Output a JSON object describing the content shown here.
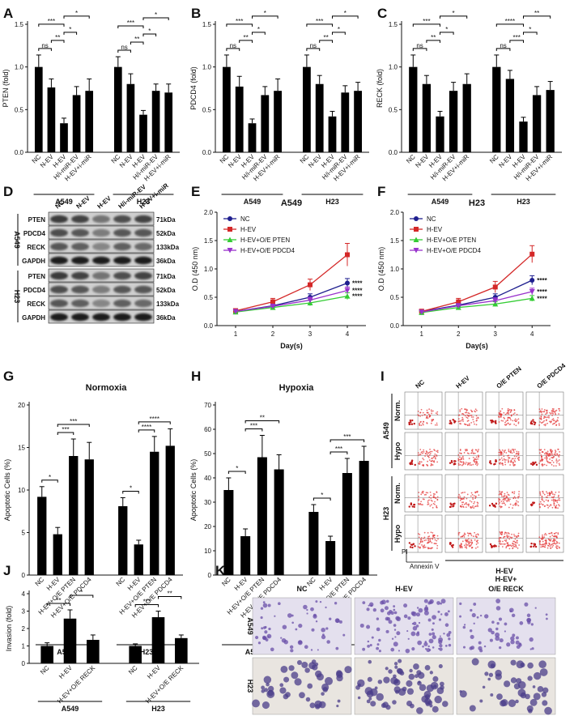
{
  "panels": {
    "A": {
      "type": "bar",
      "ylabel": "PTEN (fold)",
      "ylim": [
        0,
        1.5
      ],
      "yticks": [
        "0.0",
        "0.5",
        "1.0",
        "1.5"
      ],
      "categories": [
        "NC",
        "N-EV",
        "H-EV",
        "H/i-miR-EV",
        "H-EV+i-miR"
      ],
      "groups": [
        {
          "name": "A549",
          "values": [
            1.0,
            0.76,
            0.34,
            0.67,
            0.72
          ],
          "errors": [
            0.14,
            0.1,
            0.06,
            0.1,
            0.14
          ],
          "sig": [
            {
              "from": 0,
              "to": 2,
              "text": "***"
            },
            {
              "from": 0,
              "to": 1,
              "text": "ns"
            },
            {
              "from": 1,
              "to": 2,
              "text": "**"
            },
            {
              "from": 2,
              "to": 3,
              "text": "*"
            },
            {
              "from": 2,
              "to": 4,
              "text": "*"
            }
          ]
        },
        {
          "name": "H23",
          "values": [
            1.0,
            0.8,
            0.44,
            0.72,
            0.7
          ],
          "errors": [
            0.12,
            0.12,
            0.05,
            0.08,
            0.1
          ],
          "sig": [
            {
              "from": 0,
              "to": 2,
              "text": "***"
            },
            {
              "from": 0,
              "to": 1,
              "text": "ns"
            },
            {
              "from": 1,
              "to": 2,
              "text": "**"
            },
            {
              "from": 2,
              "to": 3,
              "text": "*"
            },
            {
              "from": 2,
              "to": 4,
              "text": "*"
            }
          ]
        }
      ]
    },
    "B": {
      "type": "bar",
      "ylabel": "PDCD4 (fold)",
      "ylim": [
        0,
        1.5
      ],
      "yticks": [
        "0.0",
        "0.5",
        "1.0",
        "1.5"
      ],
      "categories": [
        "NC",
        "N-EV",
        "H-EV",
        "H/i-miR-EV",
        "H-EV+i-miR"
      ],
      "groups": [
        {
          "name": "A549",
          "values": [
            1.0,
            0.77,
            0.34,
            0.67,
            0.72
          ],
          "errors": [
            0.14,
            0.12,
            0.05,
            0.1,
            0.14
          ],
          "sig": [
            {
              "from": 0,
              "to": 2,
              "text": "***"
            },
            {
              "from": 0,
              "to": 1,
              "text": "ns"
            },
            {
              "from": 1,
              "to": 2,
              "text": "**"
            },
            {
              "from": 2,
              "to": 3,
              "text": "*"
            },
            {
              "from": 2,
              "to": 4,
              "text": "*"
            }
          ]
        },
        {
          "name": "H23",
          "values": [
            1.0,
            0.8,
            0.42,
            0.7,
            0.72
          ],
          "errors": [
            0.14,
            0.1,
            0.06,
            0.08,
            0.1
          ],
          "sig": [
            {
              "from": 0,
              "to": 2,
              "text": "***"
            },
            {
              "from": 0,
              "to": 1,
              "text": "ns"
            },
            {
              "from": 1,
              "to": 2,
              "text": "**"
            },
            {
              "from": 2,
              "to": 3,
              "text": "*"
            },
            {
              "from": 2,
              "to": 4,
              "text": "*"
            }
          ]
        }
      ]
    },
    "C": {
      "type": "bar",
      "ylabel": "RECK (fold)",
      "ylim": [
        0,
        1.5
      ],
      "yticks": [
        "0.0",
        "0.5",
        "1.0",
        "1.5"
      ],
      "categories": [
        "NC",
        "N-EV",
        "H-EV",
        "H/i-miR-EV",
        "H-EV+i-miR"
      ],
      "groups": [
        {
          "name": "A549",
          "values": [
            1.0,
            0.8,
            0.42,
            0.72,
            0.8
          ],
          "errors": [
            0.14,
            0.1,
            0.06,
            0.1,
            0.12
          ],
          "sig": [
            {
              "from": 0,
              "to": 2,
              "text": "***"
            },
            {
              "from": 0,
              "to": 1,
              "text": "ns"
            },
            {
              "from": 1,
              "to": 2,
              "text": "**"
            },
            {
              "from": 2,
              "to": 3,
              "text": "*"
            },
            {
              "from": 2,
              "to": 4,
              "text": "*"
            }
          ]
        },
        {
          "name": "H23",
          "values": [
            1.0,
            0.86,
            0.36,
            0.67,
            0.73
          ],
          "errors": [
            0.14,
            0.1,
            0.05,
            0.1,
            0.1
          ],
          "sig": [
            {
              "from": 0,
              "to": 2,
              "text": "****"
            },
            {
              "from": 0,
              "to": 1,
              "text": "ns"
            },
            {
              "from": 1,
              "to": 2,
              "text": "***"
            },
            {
              "from": 2,
              "to": 3,
              "text": "*"
            },
            {
              "from": 2,
              "to": 4,
              "text": "**"
            }
          ]
        }
      ]
    },
    "D": {
      "columns": [
        "NC",
        "N-EV",
        "H-EV",
        "H/i-miR-EV",
        "H-EV+i-miR"
      ],
      "blocks": [
        {
          "cell": "A549",
          "rows": [
            {
              "protein": "PTEN",
              "size": "71kDa"
            },
            {
              "protein": "PDCD4",
              "size": "52kDa"
            },
            {
              "protein": "RECK",
              "size": "133kDa"
            },
            {
              "protein": "GAPDH",
              "size": "36kDa"
            }
          ]
        },
        {
          "cell": "H23",
          "rows": [
            {
              "protein": "PTEN",
              "size": "71kDa"
            },
            {
              "protein": "PDCD4",
              "size": "52kDa"
            },
            {
              "protein": "RECK",
              "size": "133kDa"
            },
            {
              "protein": "GAPDH",
              "size": "36kDa"
            }
          ]
        }
      ]
    },
    "E": {
      "type": "line",
      "title": "A549",
      "xlabel": "Day(s)",
      "ylabel": "O.D (450 nm)",
      "x": [
        1,
        2,
        3,
        4
      ],
      "xlim": [
        0.5,
        4.5
      ],
      "ylim": [
        0,
        2.0
      ],
      "yticks": [
        "0.0",
        "0.5",
        "1.0",
        "1.5",
        "2.0"
      ],
      "series": [
        {
          "name": "NC",
          "color": "#1f1f8f",
          "values": [
            0.25,
            0.35,
            0.5,
            0.75
          ],
          "errors": [
            0.03,
            0.04,
            0.06,
            0.08
          ]
        },
        {
          "name": "H-EV",
          "color": "#d42828",
          "values": [
            0.26,
            0.42,
            0.72,
            1.25
          ],
          "errors": [
            0.04,
            0.06,
            0.1,
            0.2
          ]
        },
        {
          "name": "H-EV+O/E PTEN",
          "color": "#33cc33",
          "values": [
            0.24,
            0.32,
            0.4,
            0.52
          ],
          "errors": [
            0.03,
            0.03,
            0.05,
            0.06
          ]
        },
        {
          "name": "H-EV+O/E PDCD4",
          "color": "#9933cc",
          "values": [
            0.25,
            0.34,
            0.45,
            0.62
          ],
          "errors": [
            0.03,
            0.04,
            0.05,
            0.06
          ]
        }
      ],
      "end_sig": [
        "****",
        "****",
        "****"
      ]
    },
    "F": {
      "type": "line",
      "title": "H23",
      "xlabel": "Day(s)",
      "ylabel": "O.D (450 nm)",
      "x": [
        1,
        2,
        3,
        4
      ],
      "xlim": [
        0.5,
        4.5
      ],
      "ylim": [
        0,
        2.0
      ],
      "yticks": [
        "0.0",
        "0.5",
        "1.0",
        "1.5",
        "2.0"
      ],
      "series": [
        {
          "name": "NC",
          "color": "#1f1f8f",
          "values": [
            0.25,
            0.36,
            0.5,
            0.8
          ],
          "errors": [
            0.03,
            0.04,
            0.06,
            0.08
          ]
        },
        {
          "name": "H-EV",
          "color": "#d42828",
          "values": [
            0.25,
            0.42,
            0.68,
            1.26
          ],
          "errors": [
            0.04,
            0.06,
            0.1,
            0.15
          ]
        },
        {
          "name": "H-EV+O/E PTEN",
          "color": "#33cc33",
          "values": [
            0.23,
            0.32,
            0.38,
            0.48
          ],
          "errors": [
            0.03,
            0.03,
            0.04,
            0.05
          ]
        },
        {
          "name": "H-EV+O/E PDCD4",
          "color": "#9933cc",
          "values": [
            0.24,
            0.35,
            0.44,
            0.6
          ],
          "errors": [
            0.03,
            0.04,
            0.05,
            0.06
          ]
        }
      ],
      "end_sig": [
        "****",
        "****",
        "****"
      ]
    },
    "G": {
      "type": "bar",
      "title": "Normoxia",
      "ylabel": "Apoptotic Cells (%)",
      "ylim": [
        0,
        20
      ],
      "yticks": [
        "0",
        "5",
        "10",
        "15",
        "20"
      ],
      "categories": [
        "NC",
        "H-EV",
        "H-EV+O/E PTEN",
        "H-EV+O/E PDCD4"
      ],
      "groups": [
        {
          "name": "A549",
          "values": [
            9.2,
            4.8,
            14.0,
            13.6
          ],
          "errors": [
            1.2,
            0.8,
            2.0,
            2.0
          ],
          "sig": [
            {
              "from": 0,
              "to": 1,
              "text": "*"
            },
            {
              "from": 1,
              "to": 2,
              "text": "***"
            },
            {
              "from": 1,
              "to": 3,
              "text": "***"
            }
          ]
        },
        {
          "name": "H23",
          "values": [
            8.1,
            3.6,
            14.5,
            15.2
          ],
          "errors": [
            1.0,
            0.5,
            1.8,
            2.0
          ],
          "sig": [
            {
              "from": 0,
              "to": 1,
              "text": "*"
            },
            {
              "from": 1,
              "to": 2,
              "text": "****"
            },
            {
              "from": 1,
              "to": 3,
              "text": "****"
            }
          ]
        }
      ]
    },
    "H": {
      "type": "bar",
      "title": "Hypoxia",
      "ylabel": "Apoptotic Cells (%)",
      "ylim": [
        0,
        70
      ],
      "yticks": [
        "0",
        "10",
        "20",
        "30",
        "40",
        "50",
        "60",
        "70"
      ],
      "categories": [
        "NC",
        "H-EV",
        "H-EV+O/E PTEN",
        "H-EV+O/E PDCD4"
      ],
      "groups": [
        {
          "name": "A549",
          "values": [
            35,
            16,
            48.5,
            43.5
          ],
          "errors": [
            5,
            3,
            9,
            6
          ],
          "sig": [
            {
              "from": 0,
              "to": 1,
              "text": "*"
            },
            {
              "from": 1,
              "to": 2,
              "text": "***"
            },
            {
              "from": 1,
              "to": 3,
              "text": "**"
            }
          ]
        },
        {
          "name": "H23",
          "values": [
            26,
            14,
            42,
            47
          ],
          "errors": [
            3,
            2,
            6,
            6
          ],
          "sig": [
            {
              "from": 0,
              "to": 1,
              "text": "*"
            },
            {
              "from": 1,
              "to": 2,
              "text": "***"
            },
            {
              "from": 1,
              "to": 3,
              "text": "***"
            }
          ]
        }
      ]
    },
    "I": {
      "columns": [
        "NC",
        "H-EV",
        "O/E PTEN",
        "O/E PDCD4"
      ],
      "blocks": [
        {
          "cell": "A549",
          "rows": [
            "Norm.",
            "Hypo"
          ]
        },
        {
          "cell": "H23",
          "rows": [
            "Norm.",
            "Hypo"
          ]
        }
      ],
      "xaxis": "Annexin V",
      "yaxis": "PI",
      "footer": "H-EV"
    },
    "J": {
      "type": "bar",
      "ylabel": "Invasion (fold)",
      "ylim": [
        0,
        4
      ],
      "yticks": [
        "0",
        "1",
        "2",
        "3",
        "4"
      ],
      "categories": [
        "NC",
        "H-EV",
        "H-EV+O/E RECK"
      ],
      "groups": [
        {
          "name": "A549",
          "values": [
            1.0,
            2.57,
            1.35
          ],
          "errors": [
            0.18,
            0.5,
            0.28
          ],
          "sig": [
            {
              "from": 0,
              "to": 1,
              "text": "**"
            },
            {
              "from": 1,
              "to": 2,
              "text": "*"
            }
          ]
        },
        {
          "name": "H23",
          "values": [
            1.0,
            2.65,
            1.45
          ],
          "errors": [
            0.12,
            0.35,
            0.18
          ],
          "sig": [
            {
              "from": 0,
              "to": 1,
              "text": "***"
            },
            {
              "from": 1,
              "to": 2,
              "text": "**"
            }
          ]
        }
      ]
    },
    "K": {
      "columns": [
        "NC",
        "H-EV",
        "H-EV+ O/E RECK"
      ],
      "rows": [
        "A549",
        "H23"
      ]
    }
  }
}
